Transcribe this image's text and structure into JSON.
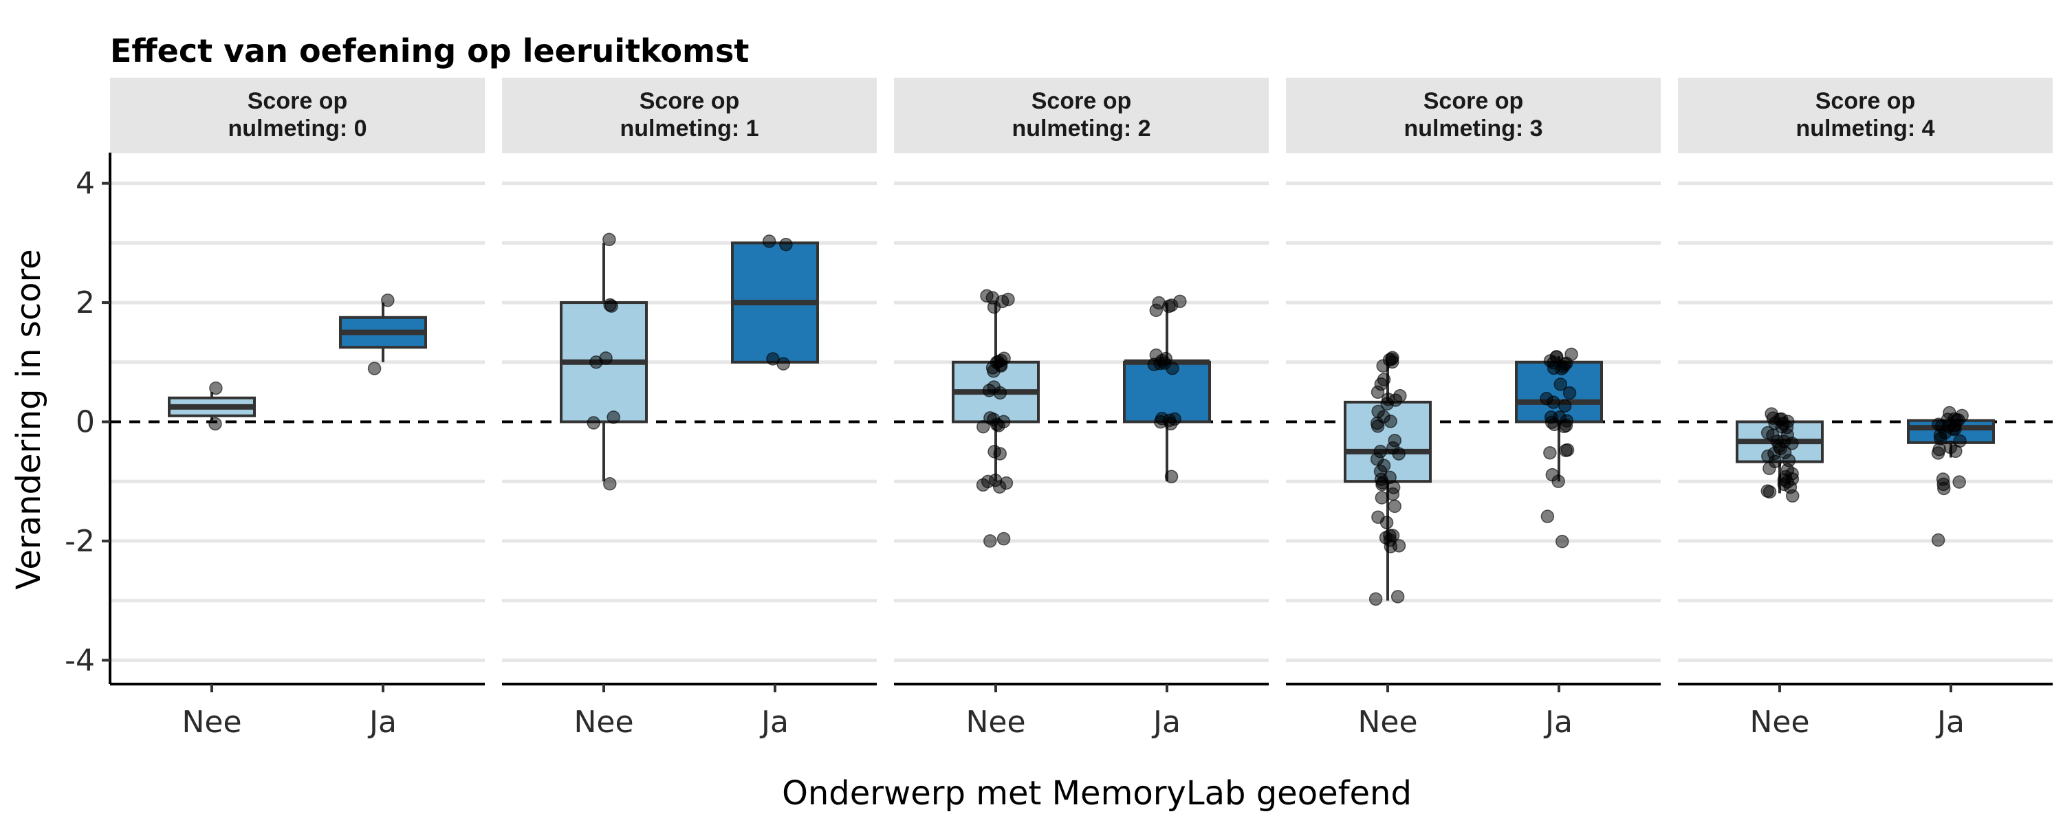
{
  "chart_data": {
    "type": "boxplot",
    "title": "Effect van oefening op leeruitkomst",
    "xlabel": "Onderwerp met MemoryLab geoefend",
    "ylabel": "Verandering in score",
    "ylim": [
      -4.4,
      4.4
    ],
    "yticks": [
      -4,
      -2,
      0,
      2,
      4
    ],
    "categories": [
      "Nee",
      "Ja"
    ],
    "colors": {
      "Nee": "#a6cee3",
      "Ja": "#1f78b4"
    },
    "reference_line": 0,
    "grid": true,
    "legend": "none",
    "facets": [
      {
        "label_line1": "Score op",
        "label_line2": "nulmeting: 0",
        "groups": [
          {
            "category": "Nee",
            "q1": 0.1,
            "median": 0.25,
            "q3": 0.4,
            "whisker_low": 0.0,
            "whisker_high": 0.5,
            "points": [
              0.55,
              0.0
            ]
          },
          {
            "category": "Ja",
            "q1": 1.25,
            "median": 1.5,
            "q3": 1.75,
            "whisker_low": 1.0,
            "whisker_high": 2.0,
            "points": [
              2.05,
              0.92
            ]
          }
        ]
      },
      {
        "label_line1": "Score op",
        "label_line2": "nulmeting: 1",
        "groups": [
          {
            "category": "Nee",
            "q1": 0.0,
            "median": 1.0,
            "q3": 2.0,
            "whisker_low": -1.0,
            "whisker_high": 3.0,
            "points": [
              3.08,
              1.95,
              1.92,
              1.05,
              1.02,
              0.1,
              -0.02,
              -1.05
            ]
          },
          {
            "category": "Ja",
            "q1": 1.0,
            "median": 2.0,
            "q3": 3.0,
            "whisker_low": 1.0,
            "whisker_high": 3.0,
            "points": [
              3.02,
              3.0,
              1.05,
              0.95
            ]
          }
        ]
      },
      {
        "label_line1": "Score op",
        "label_line2": "nulmeting: 2",
        "groups": [
          {
            "category": "Nee",
            "q1": 0.0,
            "median": 0.5,
            "q3": 1.0,
            "whisker_low": -1.0,
            "whisker_high": 2.0,
            "points": [
              2.1,
              2.08,
              2.05,
              2.0,
              1.95,
              1.05,
              1.02,
              1.0,
              0.98,
              0.95,
              0.92,
              0.9,
              0.88,
              0.55,
              0.5,
              0.45,
              0.05,
              0.02,
              0.0,
              -0.02,
              -0.05,
              -0.08,
              -0.5,
              -0.55,
              -0.95,
              -1.0,
              -1.02,
              -1.05,
              -1.1,
              -1.95,
              -1.98
            ]
          },
          {
            "category": "Ja",
            "q1": 0.0,
            "median": 1.0,
            "q3": 1.0,
            "whisker_low": -1.0,
            "whisker_high": 2.0,
            "points": [
              2.02,
              2.0,
              1.98,
              1.95,
              1.9,
              1.1,
              1.08,
              1.05,
              1.0,
              0.98,
              0.95,
              0.92,
              0.08,
              0.05,
              0.02,
              0.0,
              -0.02,
              -0.92
            ]
          }
        ]
      },
      {
        "label_line1": "Score op",
        "label_line2": "nulmeting: 3",
        "groups": [
          {
            "category": "Nee",
            "q1": -1.0,
            "median": -0.5,
            "q3": 0.33,
            "whisker_low": -3.0,
            "whisker_high": 1.0,
            "points": [
              1.08,
              1.05,
              1.02,
              1.0,
              0.95,
              0.7,
              0.62,
              0.5,
              0.45,
              0.4,
              0.35,
              0.3,
              0.2,
              0.05,
              0.0,
              -0.05,
              -0.1,
              -0.3,
              -0.45,
              -0.5,
              -0.55,
              -0.6,
              -0.7,
              -0.85,
              -0.9,
              -0.95,
              -1.0,
              -1.05,
              -1.1,
              -1.2,
              -1.3,
              -1.45,
              -1.6,
              -1.7,
              -1.9,
              -1.92,
              -1.95,
              -2.0,
              -2.05,
              -2.1,
              -2.95,
              -2.98
            ]
          },
          {
            "category": "Ja",
            "q1": 0.0,
            "median": 0.33,
            "q3": 1.0,
            "whisker_low": -1.0,
            "whisker_high": 1.1,
            "points": [
              1.12,
              1.1,
              1.08,
              1.05,
              1.02,
              1.0,
              0.98,
              0.95,
              0.92,
              0.9,
              0.6,
              0.5,
              0.4,
              0.35,
              0.3,
              0.1,
              0.05,
              0.02,
              0.0,
              -0.02,
              -0.05,
              -0.1,
              -0.45,
              -0.5,
              -0.55,
              -0.9,
              -1.0,
              -1.6,
              -1.98
            ]
          }
        ]
      },
      {
        "label_line1": "Score op",
        "label_line2": "nulmeting: 4",
        "groups": [
          {
            "category": "Nee",
            "q1": -0.67,
            "median": -0.33,
            "q3": 0.0,
            "whisker_low": -1.2,
            "whisker_high": 0.05,
            "points": [
              0.1,
              0.08,
              0.05,
              0.02,
              0.0,
              -0.02,
              -0.05,
              -0.08,
              -0.1,
              -0.15,
              -0.2,
              -0.25,
              -0.3,
              -0.33,
              -0.35,
              -0.4,
              -0.45,
              -0.5,
              -0.55,
              -0.6,
              -0.65,
              -0.7,
              -0.75,
              -0.8,
              -0.85,
              -0.9,
              -0.95,
              -1.0,
              -1.02,
              -1.05,
              -1.1,
              -1.15,
              -1.2,
              -1.25
            ]
          },
          {
            "category": "Ja",
            "q1": -0.35,
            "median": -0.1,
            "q3": 0.02,
            "whisker_low": -0.6,
            "whisker_high": 0.08,
            "points": [
              0.12,
              0.1,
              0.08,
              0.05,
              0.02,
              0.0,
              -0.02,
              -0.05,
              -0.08,
              -0.1,
              -0.12,
              -0.15,
              -0.2,
              -0.25,
              -0.3,
              -0.35,
              -0.4,
              -0.45,
              -0.5,
              -0.55,
              -0.95,
              -1.0,
              -1.05,
              -1.1,
              -2.0
            ]
          }
        ]
      }
    ]
  }
}
